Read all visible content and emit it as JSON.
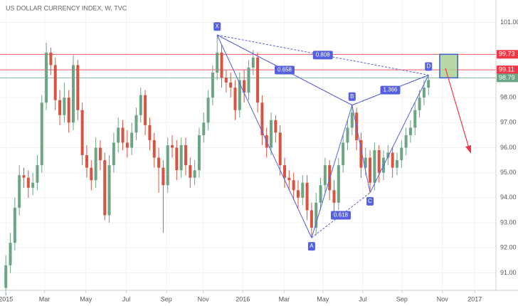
{
  "chart_data": {
    "type": "candlestick",
    "title": "US DOLLAR CURRENCY INDEX, W, TVC",
    "up_color": "#6ba583",
    "down_color": "#d75442",
    "x": [
      0,
      1,
      2,
      3,
      4,
      5,
      6,
      7,
      8,
      9,
      10,
      11,
      12,
      13,
      14,
      15,
      16,
      17,
      18,
      19,
      20,
      21,
      22,
      23,
      24,
      25,
      26,
      27,
      28,
      29,
      30,
      31,
      32,
      33,
      34,
      35,
      36,
      37,
      38,
      39,
      40,
      41,
      42,
      43,
      44,
      45,
      46,
      47,
      48,
      49,
      50,
      51,
      52,
      53,
      54,
      55,
      56,
      57,
      58,
      59,
      60,
      61,
      62,
      63,
      64,
      65,
      66,
      67,
      68,
      69,
      70,
      71,
      72,
      73,
      74,
      75,
      76,
      77,
      78,
      79,
      80,
      81,
      82,
      83,
      84,
      85,
      86,
      87,
      88,
      89,
      90,
      91,
      92,
      93,
      94
    ],
    "open": [
      90.4,
      91.3,
      92.2,
      93.6,
      94.9,
      94.8,
      94.4,
      94.6,
      95.3,
      97.8,
      99.8,
      99.3,
      97.9,
      97.3,
      98.0,
      97.0,
      99.3,
      97.5,
      95.7,
      95.2,
      94.7,
      96.0,
      95.5,
      93.3,
      95.3,
      96.2,
      96.8,
      96.2,
      96.0,
      96.6,
      97.3,
      98.1,
      96.9,
      96.3,
      95.6,
      95.2,
      94.5,
      96.1,
      96.0,
      95.1,
      96.1,
      95.3,
      94.8,
      95.1,
      96.5,
      97.0,
      98.0,
      99.0,
      99.8,
      98.8,
      98.6,
      98.4,
      97.5,
      98.7,
      98.2,
      99.2,
      99.6,
      97.8,
      96.5,
      96.0,
      97.1,
      96.6,
      95.3,
      94.8,
      94.7,
      94.3,
      94.0,
      94.6,
      93.5,
      92.8,
      93.8,
      94.5,
      95.3,
      94.3,
      93.8,
      95.3,
      96.2,
      96.8,
      97.4,
      96.3,
      95.2,
      95.6,
      94.6,
      95.9,
      95.0,
      95.6,
      95.8,
      95.2,
      95.5,
      96.0,
      96.5,
      96.8,
      97.5,
      98.0,
      98.4
    ],
    "high": [
      91.7,
      92.6,
      94.0,
      95.3,
      95.2,
      95.1,
      95.0,
      95.7,
      98.1,
      100.2,
      100.0,
      99.6,
      98.3,
      98.6,
      98.3,
      99.7,
      99.5,
      97.8,
      96.1,
      95.5,
      96.4,
      96.3,
      95.8,
      95.7,
      96.6,
      97.2,
      97.1,
      96.7,
      97.0,
      97.6,
      98.4,
      98.3,
      97.2,
      96.6,
      96.0,
      95.5,
      96.4,
      96.5,
      96.3,
      96.4,
      96.4,
      95.6,
      95.5,
      96.8,
      97.4,
      98.3,
      99.3,
      100.5,
      100.1,
      99.1,
      99.0,
      98.7,
      99.0,
      99.1,
      99.5,
      99.9,
      99.8,
      98.1,
      96.8,
      97.4,
      97.3,
      96.9,
      95.6,
      95.1,
      95.0,
      94.7,
      94.9,
      94.9,
      93.8,
      94.2,
      94.8,
      95.6,
      95.5,
      94.7,
      95.6,
      96.5,
      97.1,
      97.7,
      97.6,
      96.6,
      96.0,
      95.9,
      96.2,
      96.1,
      95.9,
      96.1,
      96.0,
      95.8,
      96.3,
      96.8,
      97.1,
      97.8,
      98.3,
      98.7,
      98.9
    ],
    "low": [
      90.1,
      91.0,
      91.9,
      93.3,
      94.4,
      94.0,
      94.1,
      94.3,
      95.0,
      97.5,
      98.9,
      97.5,
      96.9,
      97.0,
      96.6,
      96.7,
      97.1,
      95.3,
      94.8,
      94.3,
      94.4,
      95.1,
      93.1,
      93.0,
      95.0,
      95.8,
      95.9,
      95.6,
      95.7,
      96.3,
      97.0,
      96.5,
      95.9,
      95.2,
      94.2,
      92.6,
      94.2,
      95.6,
      94.7,
      94.8,
      94.9,
      94.4,
      94.5,
      94.8,
      96.2,
      96.7,
      97.7,
      98.7,
      98.4,
      98.2,
      98.0,
      97.1,
      97.2,
      97.8,
      97.9,
      98.9,
      97.4,
      96.1,
      95.6,
      95.7,
      96.2,
      94.9,
      94.4,
      94.3,
      93.9,
      93.6,
      93.7,
      93.1,
      92.4,
      92.5,
      93.5,
      94.2,
      93.9,
      93.4,
      93.5,
      95.0,
      95.9,
      96.5,
      95.9,
      94.8,
      94.9,
      94.2,
      94.3,
      94.6,
      94.7,
      95.3,
      94.8,
      94.9,
      95.2,
      95.7,
      96.2,
      96.5,
      97.2,
      97.7,
      98.1
    ],
    "close": [
      91.3,
      92.2,
      93.6,
      94.9,
      94.8,
      94.4,
      94.6,
      95.3,
      97.8,
      99.8,
      99.3,
      97.9,
      97.3,
      98.0,
      97.0,
      99.3,
      97.5,
      95.7,
      95.2,
      94.7,
      96.0,
      95.5,
      93.3,
      95.3,
      96.2,
      96.8,
      96.2,
      96.0,
      96.6,
      97.3,
      98.1,
      96.9,
      96.3,
      95.6,
      95.2,
      94.5,
      96.1,
      96.0,
      95.1,
      96.1,
      95.3,
      94.8,
      95.1,
      96.5,
      97.0,
      98.0,
      99.0,
      99.8,
      98.8,
      98.6,
      98.4,
      97.5,
      98.7,
      98.2,
      99.2,
      99.6,
      97.8,
      96.5,
      96.0,
      97.1,
      96.6,
      95.3,
      94.8,
      94.7,
      94.3,
      94.0,
      94.6,
      93.5,
      92.8,
      93.8,
      94.5,
      95.3,
      94.3,
      93.8,
      95.3,
      96.2,
      96.8,
      97.4,
      96.3,
      95.2,
      95.6,
      94.6,
      95.9,
      95.0,
      95.6,
      95.8,
      95.2,
      95.5,
      96.0,
      96.5,
      96.8,
      97.5,
      98.0,
      98.4,
      98.7
    ],
    "xlim": [
      -1.3,
      109
    ],
    "xticks": [
      {
        "value": 0,
        "label": "2015"
      },
      {
        "value": 8.6,
        "label": "Mar"
      },
      {
        "value": 17.8,
        "label": "May"
      },
      {
        "value": 26.8,
        "label": "Jul"
      },
      {
        "value": 35.7,
        "label": "Sep"
      },
      {
        "value": 43.9,
        "label": "Nov"
      },
      {
        "value": 52.7,
        "label": "2016"
      },
      {
        "value": 61.9,
        "label": "Mar"
      },
      {
        "value": 70.5,
        "label": "May"
      },
      {
        "value": 79.4,
        "label": "Jul"
      },
      {
        "value": 88.1,
        "label": "Sep"
      },
      {
        "value": 97.1,
        "label": "Nov"
      },
      {
        "value": 104.3,
        "label": "2017"
      }
    ],
    "ylim": [
      90.3,
      101.9
    ],
    "yticks": [
      {
        "value": 91,
        "label": "91.00"
      },
      {
        "value": 92,
        "label": "92.00"
      },
      {
        "value": 93,
        "label": "93.00"
      },
      {
        "value": 94,
        "label": "94.00"
      },
      {
        "value": 95,
        "label": "95.00"
      },
      {
        "value": 96,
        "label": "96.00"
      },
      {
        "value": 97,
        "label": "97.00"
      },
      {
        "value": 98,
        "label": "98.00"
      },
      {
        "value": 99,
        "label": "99.00"
      },
      {
        "value": 101,
        "label": "101.00"
      }
    ],
    "levels": [
      {
        "value": 99.73,
        "color": "#f23645"
      },
      {
        "value": 99.11,
        "color": "#f23645"
      },
      {
        "value": 98.79,
        "color": "#6ba583"
      }
    ],
    "zone": {
      "x": [
        96.5,
        100.5
      ],
      "y": [
        98.79,
        99.73
      ],
      "color": "#a8d08d"
    },
    "pattern": {
      "color": "#5560e0",
      "points": [
        {
          "label": "X",
          "x": 47,
          "y": 100.5
        },
        {
          "label": "A",
          "x": 68,
          "y": 92.4
        },
        {
          "label": "B",
          "x": 77,
          "y": 97.7
        },
        {
          "label": "C",
          "x": 81,
          "y": 94.2
        },
        {
          "label": "D",
          "x": 94,
          "y": 98.9
        }
      ],
      "ratios": [
        {
          "label": "0.808",
          "from": "X",
          "to": "D"
        },
        {
          "label": "0.658",
          "from": "X",
          "to": "B"
        },
        {
          "label": "1.366",
          "from": "B",
          "to": "D"
        },
        {
          "label": "0.618",
          "from": "A",
          "to": "C"
        }
      ]
    }
  }
}
